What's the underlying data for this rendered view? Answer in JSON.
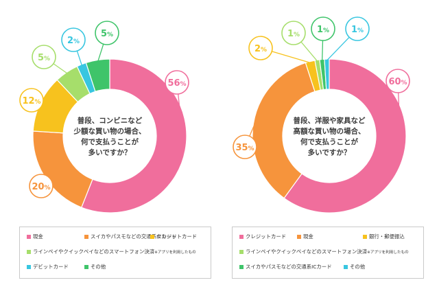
{
  "chart_data": [
    {
      "type": "pie",
      "title": "普段、コンビニなど少額な買い物の場合、何で支払うことが多いですか？",
      "title_lines": [
        "普段、コンビニなど",
        "少額な買い物の場合、",
        "何で支払うことが",
        "多いですか？"
      ],
      "unit": "%",
      "slices": [
        {
          "label": "現金",
          "value": 56,
          "color": "#f06e9c"
        },
        {
          "label": "スイカやパスモなどの交通系ICカード",
          "value": 20,
          "color": "#f6943c"
        },
        {
          "label": "クレジットカード",
          "value": 12,
          "color": "#f7c21e"
        },
        {
          "label": "ラインペイやクイックペイなどのスマートフォン決済",
          "label_note": "※アプリを利用したもの",
          "value": 5,
          "color": "#a6de6b"
        },
        {
          "label": "デビットカード",
          "value": 2,
          "color": "#38c6e0"
        },
        {
          "label": "その他",
          "value": 5,
          "color": "#3fc46a"
        }
      ],
      "legend_rows": [
        [
          0,
          1,
          2
        ],
        [
          3
        ],
        [
          4,
          5
        ]
      ]
    },
    {
      "type": "pie",
      "title": "普段、洋服や家具など高額な買い物の場合、何で支払うことが多いですか？",
      "title_lines": [
        "普段、洋服や家具など",
        "高額な買い物の場合、",
        "何で支払うことが",
        "多いですか？"
      ],
      "unit": "%",
      "slices": [
        {
          "label": "クレジットカード",
          "value": 60,
          "color": "#f06e9c"
        },
        {
          "label": "現金",
          "value": 35,
          "color": "#f6943c"
        },
        {
          "label": "銀行・郵便振込",
          "value": 2,
          "color": "#f7c21e"
        },
        {
          "label": "ラインペイやクイックペイなどのスマートフォン決済",
          "label_note": "※アプリを利用したもの",
          "value": 1,
          "color": "#a6de6b"
        },
        {
          "label": "スイカやパスモなどの交通系ICカード",
          "value": 1,
          "color": "#3fc46a"
        },
        {
          "label": "その他",
          "value": 1,
          "color": "#38c6e0"
        }
      ],
      "legend_rows": [
        [
          0,
          1,
          2
        ],
        [
          3
        ],
        [
          4,
          5
        ]
      ]
    }
  ]
}
